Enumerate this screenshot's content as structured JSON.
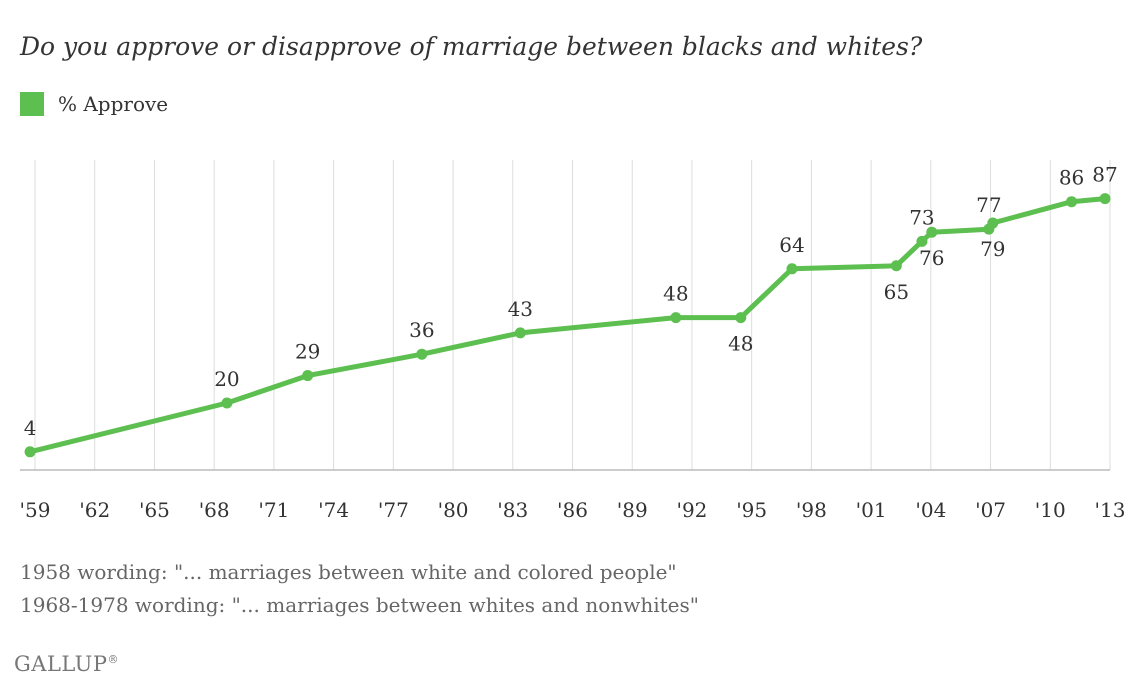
{
  "chart_data": {
    "type": "line",
    "title": "Do you approve or disapprove of marriage between blacks and whites?",
    "legend": [
      {
        "name": "% Approve",
        "color": "#5cbf4f"
      }
    ],
    "xlabel": "",
    "ylabel": "",
    "xlim": [
      1958.8,
      2013.3
    ],
    "ylim": [
      0,
      100
    ],
    "x_ticks": [
      {
        "year": 1959,
        "label": "'59"
      },
      {
        "year": 1962,
        "label": "'62"
      },
      {
        "year": 1965,
        "label": "'65"
      },
      {
        "year": 1968,
        "label": "'68"
      },
      {
        "year": 1971,
        "label": "'71"
      },
      {
        "year": 1974,
        "label": "'74"
      },
      {
        "year": 1977,
        "label": "'77"
      },
      {
        "year": 1980,
        "label": "'80"
      },
      {
        "year": 1983,
        "label": "'83"
      },
      {
        "year": 1986,
        "label": "'86"
      },
      {
        "year": 1989,
        "label": "'89"
      },
      {
        "year": 1992,
        "label": "'92"
      },
      {
        "year": 1995,
        "label": "'95"
      },
      {
        "year": 1998,
        "label": "'98"
      },
      {
        "year": 2001,
        "label": "'01"
      },
      {
        "year": 2004,
        "label": "'04"
      },
      {
        "year": 2007,
        "label": "'07"
      },
      {
        "year": 2010,
        "label": "'10"
      },
      {
        "year": 2013,
        "label": "'13"
      }
    ],
    "series": [
      {
        "name": "% Approve",
        "color": "#5cbf4f",
        "points": [
          {
            "x": 1958.6,
            "y": 4,
            "label": "4",
            "pos": "above"
          },
          {
            "x": 1968.6,
            "y": 20,
            "label": "20",
            "pos": "above"
          },
          {
            "x": 1972.7,
            "y": 29,
            "label": "29",
            "pos": "above"
          },
          {
            "x": 1978.5,
            "y": 36,
            "label": "36",
            "pos": "above"
          },
          {
            "x": 1983.5,
            "y": 43,
            "label": "43",
            "pos": "above"
          },
          {
            "x": 1991.4,
            "y": 48,
            "label": "48",
            "pos": "above"
          },
          {
            "x": 1994.7,
            "y": 48,
            "label": "48",
            "pos": "below"
          },
          {
            "x": 1997.3,
            "y": 64,
            "label": "64",
            "pos": "above"
          },
          {
            "x": 2002.6,
            "y": 65,
            "label": "65",
            "pos": "below"
          },
          {
            "x": 2003.9,
            "y": 73,
            "label": "73",
            "pos": "above"
          },
          {
            "x": 2004.4,
            "y": 76,
            "label": "76",
            "pos": "below"
          },
          {
            "x": 2007.3,
            "y": 77,
            "label": "77",
            "pos": "above"
          },
          {
            "x": 2007.5,
            "y": 79,
            "label": "79",
            "pos": "below"
          },
          {
            "x": 2011.5,
            "y": 86,
            "label": "86",
            "pos": "above"
          },
          {
            "x": 2013.2,
            "y": 87,
            "label": "87",
            "pos": "above"
          }
        ]
      }
    ],
    "grid": {
      "vertical": true,
      "horizontal": false
    }
  },
  "notes": [
    "1958 wording: \"... marriages between white and colored people\"",
    "1968-1978 wording: \"... marriages between whites and nonwhites\""
  ],
  "brand": "GALLUP",
  "brand_mark": "®"
}
